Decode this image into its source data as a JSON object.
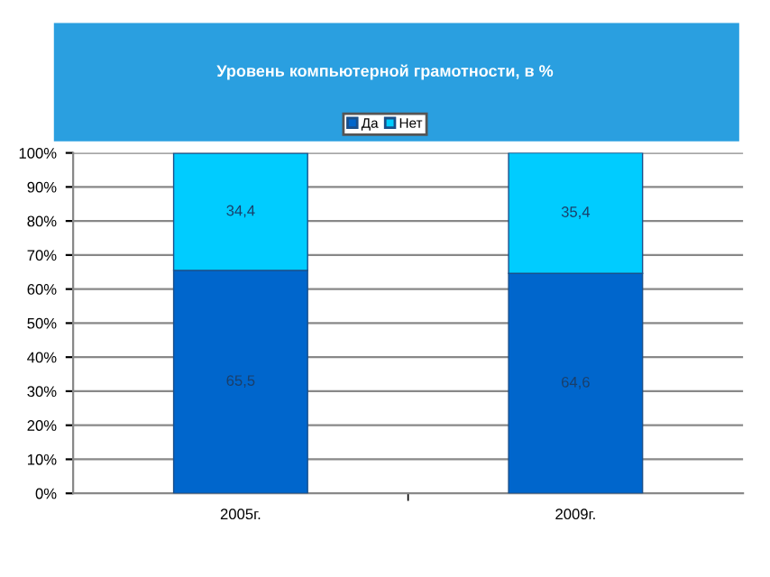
{
  "chart_data": {
    "type": "bar",
    "title": "Уровень компьютерной грамотности, в %",
    "categories": [
      "2005г.",
      "2009г."
    ],
    "series": [
      {
        "name": "Да",
        "color": "#0066cc",
        "values": [
          65.5,
          64.6
        ],
        "value_labels": [
          "65,5",
          "64,6"
        ]
      },
      {
        "name": "Нет",
        "color": "#00ccff",
        "values": [
          34.4,
          35.4
        ],
        "value_labels": [
          "34,4",
          "35,4"
        ]
      }
    ],
    "stacked": true,
    "ylim": [
      0,
      100
    ],
    "yticks": [
      {
        "value": 0,
        "label": "0%"
      },
      {
        "value": 10,
        "label": "10%"
      },
      {
        "value": 20,
        "label": "20%"
      },
      {
        "value": 30,
        "label": "30%"
      },
      {
        "value": 40,
        "label": "40%"
      },
      {
        "value": 50,
        "label": "50%"
      },
      {
        "value": 60,
        "label": "60%"
      },
      {
        "value": 70,
        "label": "70%"
      },
      {
        "value": 80,
        "label": "80%"
      },
      {
        "value": 90,
        "label": "90%"
      },
      {
        "value": 100,
        "label": "100%"
      }
    ],
    "grid": "y",
    "legend": "top"
  }
}
